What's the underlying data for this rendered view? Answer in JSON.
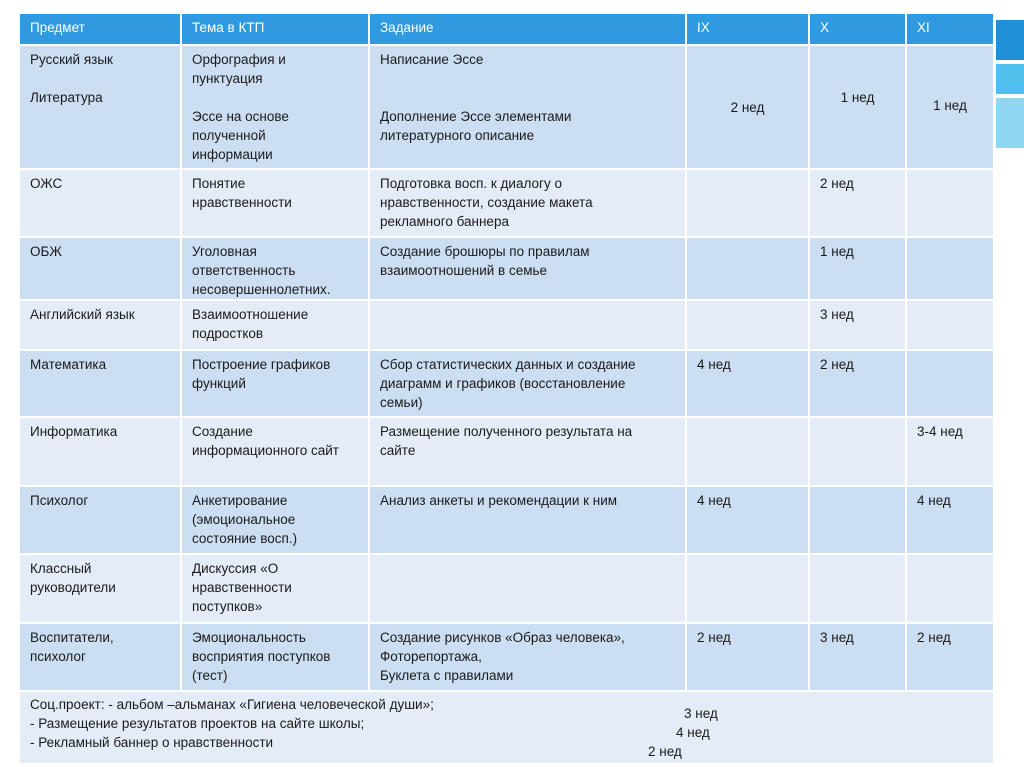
{
  "table": {
    "header": [
      "Предмет",
      "Тема в КТП",
      "Задание",
      "IX",
      "X",
      "XI"
    ],
    "rows": [
      [
        "Русский язык\n\nЛитература",
        "Орфография и\nпунктуация\n\nЭссе на основе\nполученной\nинформации",
        "Написание  Эссе\n\n\nДополнение  Эссе элементами\nлитературного описание",
        "2 нед",
        "1 нед",
        "1 нед"
      ],
      [
        "ОЖС",
        "Понятие\nнравственности",
        "Подготовка восп.  к диалогу о\nнравственности, создание макета\nрекламного баннера",
        null,
        "2 нед",
        null
      ],
      [
        "ОБЖ",
        "Уголовная\nответственность\nнесовершеннолетних.",
        "Создание брошюры по правилам\nвзаимоотношений в семье",
        null,
        "1 нед",
        null
      ],
      [
        "Английский язык",
        "Взаимоотношение\nподростков",
        null,
        null,
        "3 нед",
        null
      ],
      [
        "Математика",
        "Построение графиков\nфункций",
        "Сбор статистических данных и создание\nдиаграмм и графиков (восстановление\nсемьи)",
        "4 нед",
        "2 нед",
        null
      ],
      [
        "Информатика",
        "Создание\nинформационного сайт",
        "Размещение полученного результата на\nсайте",
        null,
        null,
        "3-4 нед"
      ],
      [
        "Психолог",
        "Анкетирование\n(эмоциональное\nсостояние восп.)",
        "Анализ анкеты и рекомендации к ним",
        "4 нед",
        null,
        "4 нед"
      ],
      [
        "Классный\nруководители",
        "Дискуссия «О\nнравственности\nпоступков»",
        null,
        null,
        null,
        null
      ],
      [
        "Воспитатели,\nпсихолог",
        "Эмоциональность\nвосприятия поступков\n(тест)",
        "Создание рисунков «Образ человека»,\nФоторепортажа,\nБуклета с правилами",
        "2 нед",
        "3 нед",
        "2 нед"
      ]
    ],
    "footer": [
      {
        "text": "Соц.проект: - альбом –альманах «Гигиена человеческой души»;",
        "duration": "3 нед"
      },
      {
        "text": "-     Размещение результатов проектов на сайте школы;",
        "duration": "4 нед"
      },
      {
        "text": "- Рекламный баннер о нравственности",
        "duration": "2 нед"
      }
    ]
  }
}
